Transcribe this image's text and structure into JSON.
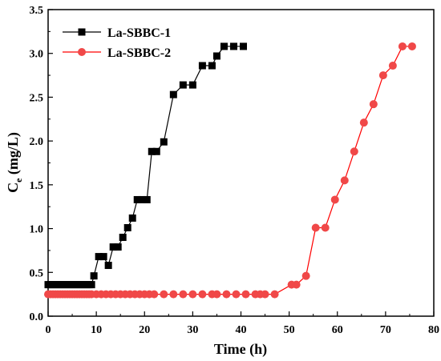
{
  "chart_data": {
    "type": "line",
    "xlabel": "Time (h)",
    "ylabel_main": "C",
    "ylabel_sub": "e",
    "ylabel_unit": " (mg/L)",
    "xlim": [
      0,
      80
    ],
    "ylim": [
      0,
      3.5
    ],
    "xticks": [
      "0",
      "10",
      "20",
      "30",
      "40",
      "50",
      "60",
      "70",
      "80"
    ],
    "yticks": [
      "0.0",
      "0.5",
      "1.0",
      "1.5",
      "2.0",
      "2.5",
      "3.0",
      "3.5"
    ],
    "legend_position": "top-left",
    "grid": false,
    "series": [
      {
        "name": "La-SBBC-1",
        "color": "#000000",
        "marker": "square",
        "x": [
          0,
          0.5,
          1,
          1.5,
          2,
          2.5,
          3,
          3.5,
          4,
          4.5,
          5,
          5.5,
          6,
          6.5,
          7,
          7.5,
          8,
          8.5,
          9,
          9.5,
          10.5,
          11.5,
          12.5,
          13.5,
          14.5,
          15.5,
          16.5,
          17.5,
          18.5,
          19.5,
          20.5,
          21.5,
          22.5,
          24,
          26,
          28,
          30,
          32,
          34,
          35,
          36.5,
          38.5,
          40.5
        ],
        "y": [
          0.36,
          0.36,
          0.36,
          0.36,
          0.36,
          0.36,
          0.36,
          0.36,
          0.36,
          0.36,
          0.36,
          0.36,
          0.36,
          0.36,
          0.36,
          0.36,
          0.36,
          0.36,
          0.36,
          0.46,
          0.68,
          0.68,
          0.58,
          0.79,
          0.79,
          0.9,
          1.01,
          1.12,
          1.33,
          1.33,
          1.33,
          1.88,
          1.88,
          1.99,
          2.53,
          2.64,
          2.64,
          2.86,
          2.86,
          2.97,
          3.08,
          3.08,
          3.08
        ]
      },
      {
        "name": "La-SBBC-2",
        "color": "#ff0000",
        "marker": "circle",
        "x": [
          0,
          0.5,
          1,
          1.5,
          2,
          2.5,
          3,
          3.5,
          4,
          4.5,
          5,
          5.5,
          6,
          6.5,
          7,
          7.5,
          8,
          8.5,
          9,
          10,
          11,
          12,
          13,
          14,
          15,
          16,
          17,
          18,
          19,
          20,
          21,
          22,
          24,
          26,
          28,
          30,
          32,
          34,
          35,
          37,
          39,
          41,
          43,
          44,
          45,
          47,
          50.5,
          51.5,
          53.5,
          55.5,
          57.5,
          59.5,
          61.5,
          63.5,
          65.5,
          67.5,
          69.5,
          71.5,
          73.5,
          75.5
        ],
        "y": [
          0.25,
          0.25,
          0.25,
          0.25,
          0.25,
          0.25,
          0.25,
          0.25,
          0.25,
          0.25,
          0.25,
          0.25,
          0.25,
          0.25,
          0.25,
          0.25,
          0.25,
          0.25,
          0.25,
          0.25,
          0.25,
          0.25,
          0.25,
          0.25,
          0.25,
          0.25,
          0.25,
          0.25,
          0.25,
          0.25,
          0.25,
          0.25,
          0.25,
          0.25,
          0.25,
          0.25,
          0.25,
          0.25,
          0.25,
          0.25,
          0.25,
          0.25,
          0.25,
          0.25,
          0.25,
          0.25,
          0.36,
          0.36,
          0.46,
          1.01,
          1.01,
          1.33,
          1.55,
          1.88,
          2.21,
          2.42,
          2.75,
          2.86,
          3.08,
          3.08
        ]
      }
    ]
  }
}
